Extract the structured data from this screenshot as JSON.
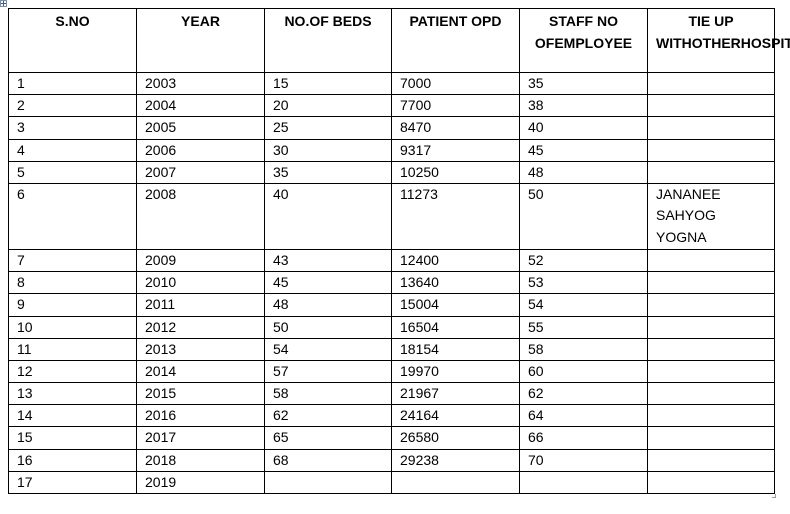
{
  "table": {
    "headers": [
      "S.NO",
      "YEAR",
      "NO.OF BEDS",
      "PATIENT OPD",
      "STAFF NO OF EMPLOYEE",
      "TIE UP WITH OTHER HOSPITAL"
    ],
    "header_lines": [
      [
        "S.NO"
      ],
      [
        "YEAR"
      ],
      [
        "NO.OF BEDS"
      ],
      [
        "PATIENT OPD"
      ],
      [
        "STAFF NO OF",
        "EMPLOYEE"
      ],
      [
        "TIE UP WITH",
        "OTHER",
        "HOSPITAL"
      ]
    ],
    "rows": [
      {
        "sno": "1",
        "year": "2003",
        "beds": "15",
        "opd": "7000",
        "staff": "35",
        "tie_up": []
      },
      {
        "sno": "2",
        "year": "2004",
        "beds": "20",
        "opd": "7700",
        "staff": "38",
        "tie_up": []
      },
      {
        "sno": "3",
        "year": "2005",
        "beds": "25",
        "opd": "8470",
        "staff": "40",
        "tie_up": []
      },
      {
        "sno": "4",
        "year": "2006",
        "beds": "30",
        "opd": "9317",
        "staff": "45",
        "tie_up": []
      },
      {
        "sno": "5",
        "year": "2007",
        "beds": "35",
        "opd": "10250",
        "staff": "48",
        "tie_up": []
      },
      {
        "sno": "6",
        "year": "2008",
        "beds": "40",
        "opd": "11273",
        "staff": "50",
        "tie_up": [
          "JANANEE",
          "SAHYOG",
          "YOGNA"
        ]
      },
      {
        "sno": "7",
        "year": "2009",
        "beds": "43",
        "opd": "12400",
        "staff": "52",
        "tie_up": []
      },
      {
        "sno": "8",
        "year": "2010",
        "beds": "45",
        "opd": "13640",
        "staff": "53",
        "tie_up": []
      },
      {
        "sno": "9",
        "year": "2011",
        "beds": "48",
        "opd": "15004",
        "staff": "54",
        "tie_up": []
      },
      {
        "sno": "10",
        "year": "2012",
        "beds": "50",
        "opd": "16504",
        "staff": "55",
        "tie_up": []
      },
      {
        "sno": "11",
        "year": "2013",
        "beds": "54",
        "opd": "18154",
        "staff": "58",
        "tie_up": []
      },
      {
        "sno": "12",
        "year": "2014",
        "beds": "57",
        "opd": "19970",
        "staff": "60",
        "tie_up": []
      },
      {
        "sno": "13",
        "year": "2015",
        "beds": "58",
        "opd": "21967",
        "staff": "62",
        "tie_up": []
      },
      {
        "sno": "14",
        "year": "2016",
        "beds": "62",
        "opd": "24164",
        "staff": "64",
        "tie_up": []
      },
      {
        "sno": "15",
        "year": "2017",
        "beds": "65",
        "opd": "26580",
        "staff": "66",
        "tie_up": []
      },
      {
        "sno": "16",
        "year": "2018",
        "beds": "68",
        "opd": "29238",
        "staff": "70",
        "tie_up": []
      },
      {
        "sno": "17",
        "year": "2019",
        "beds": "",
        "opd": "",
        "staff": "",
        "tie_up": []
      }
    ]
  },
  "icons": {
    "move_handle": "table-move-handle-icon",
    "resize_handle": "table-resize-handle-icon"
  }
}
